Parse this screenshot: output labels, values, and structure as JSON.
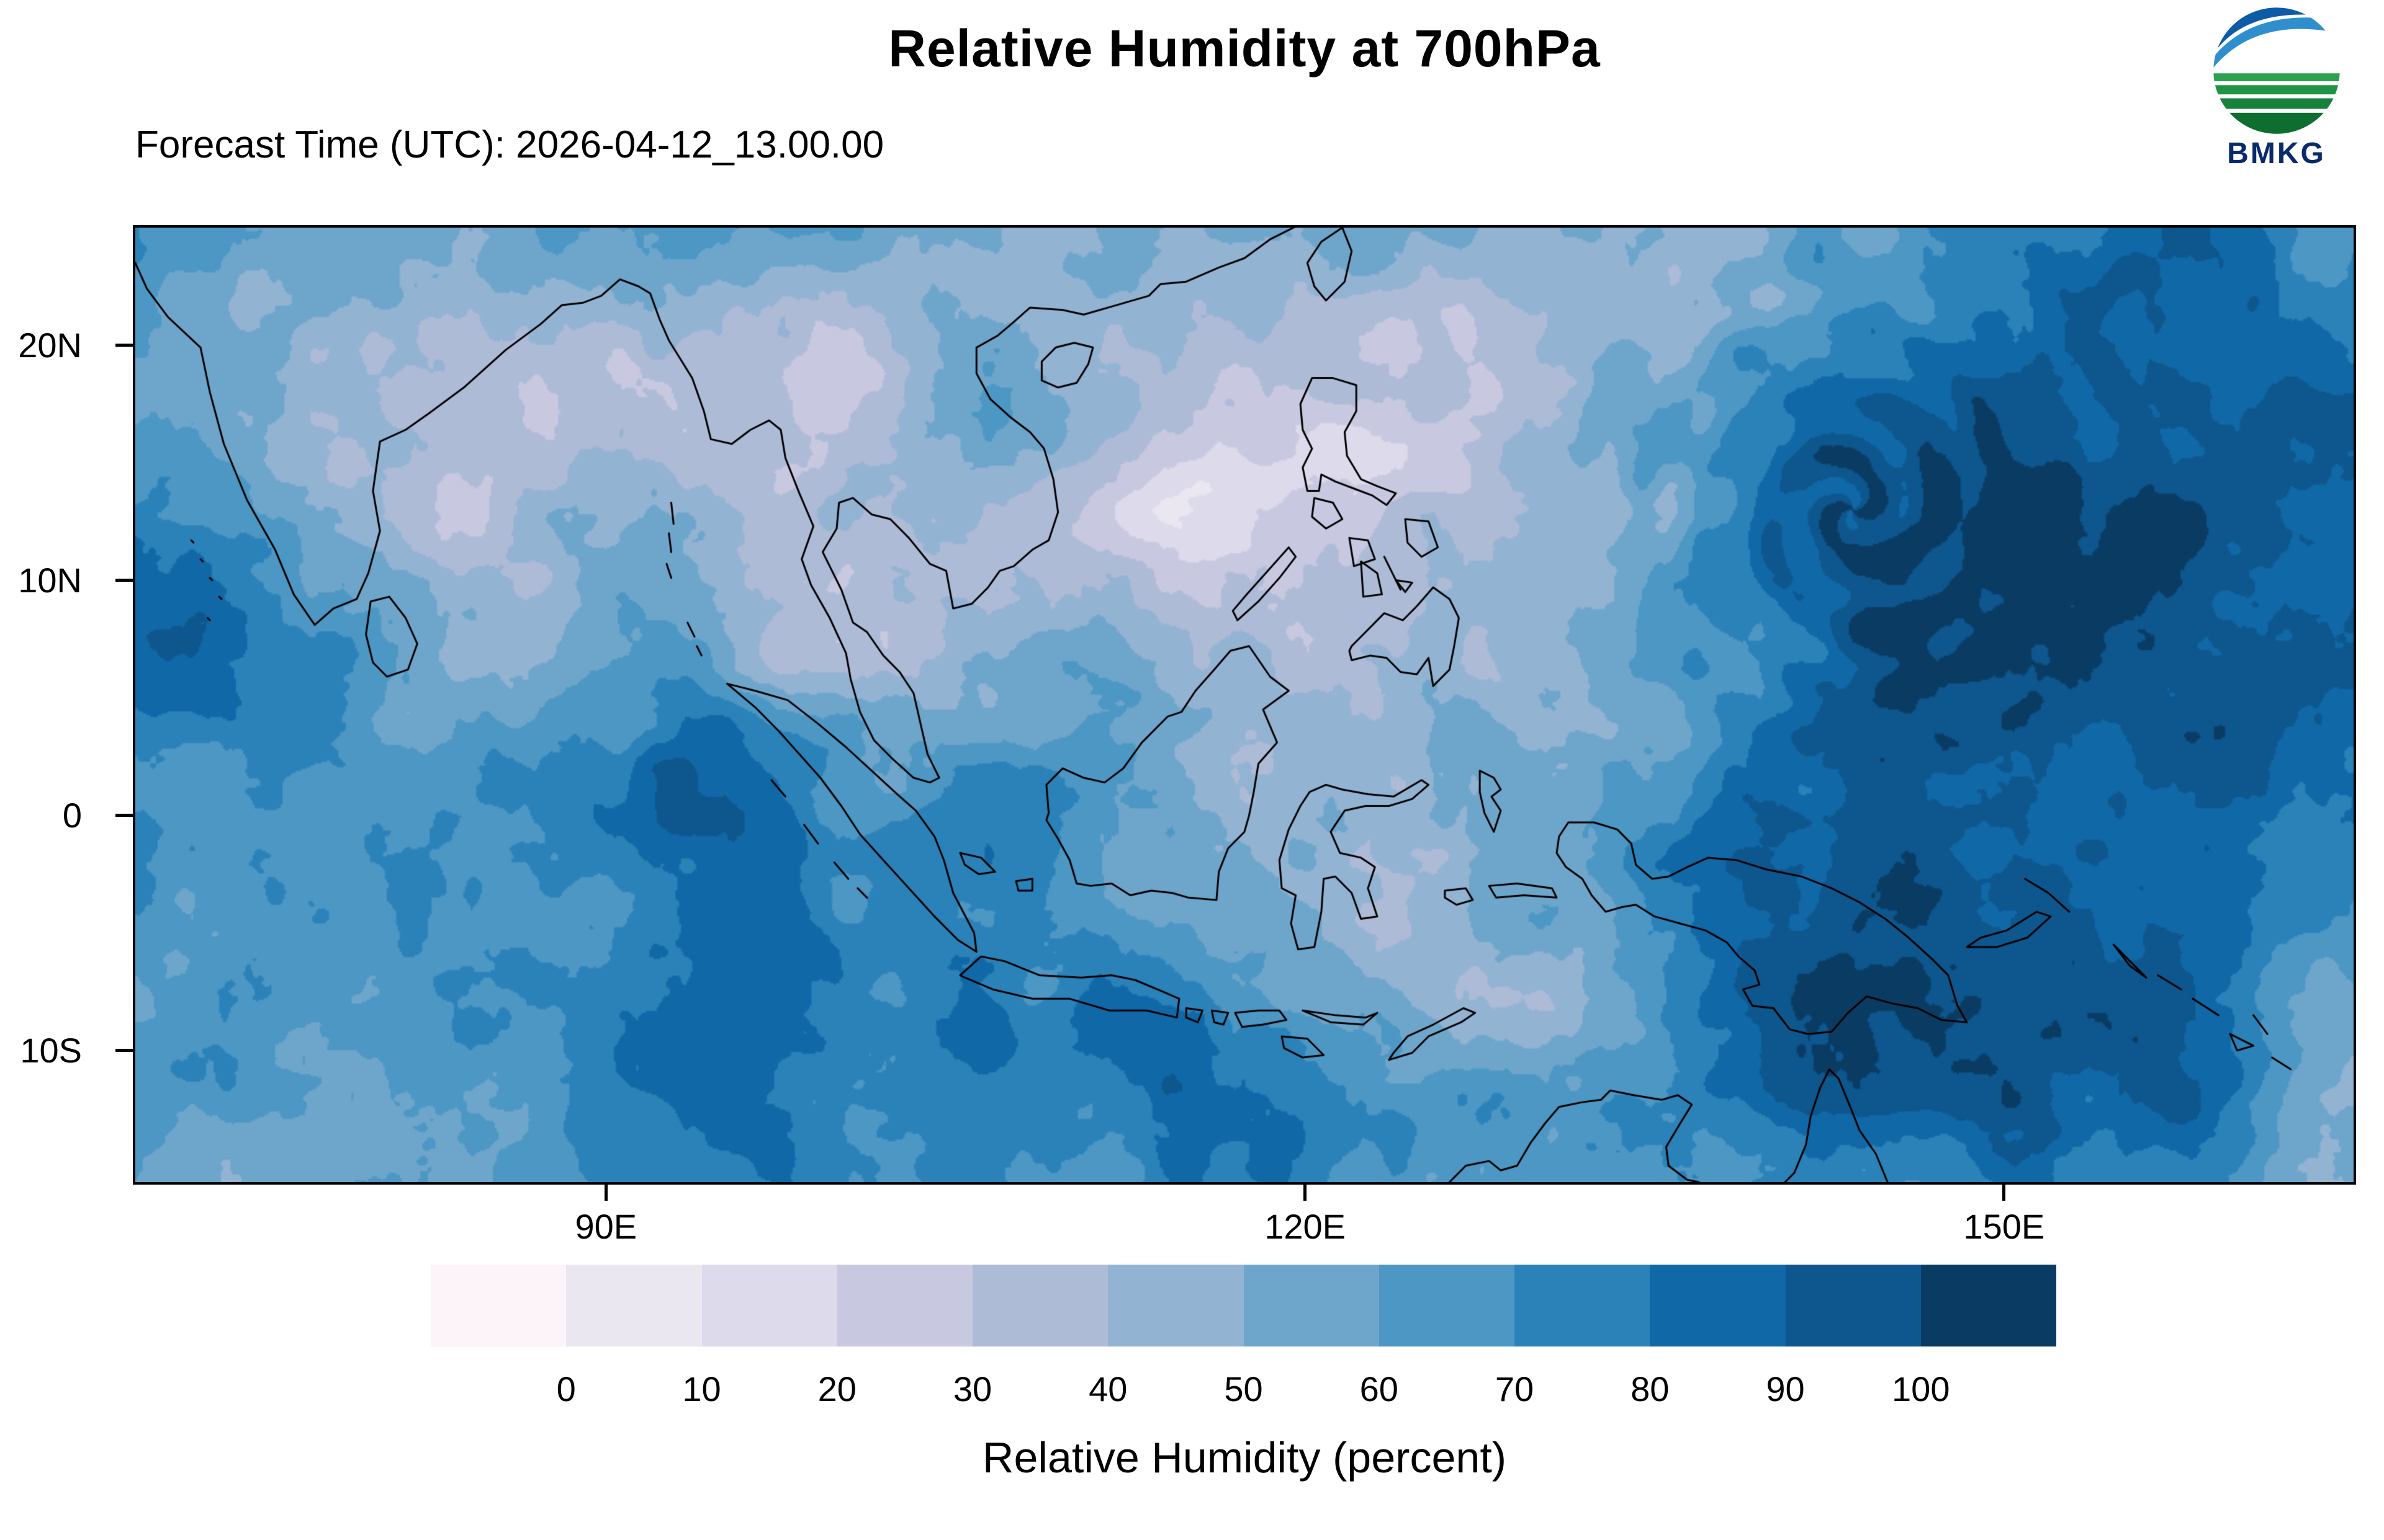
{
  "header": {
    "title": "Relative Humidity at 700hPa",
    "forecast_label": "Forecast Time (UTC): 2026-04-12_13.00.00",
    "logo_text": "BMKG",
    "logo_icon": "bmkg-globe-icon"
  },
  "axes": {
    "lat_ticks": [
      {
        "label": "20N",
        "deg": 20
      },
      {
        "label": "10N",
        "deg": 10
      },
      {
        "label": "0",
        "deg": 0
      },
      {
        "label": "10S",
        "deg": -10
      }
    ],
    "lon_ticks": [
      {
        "label": "90E",
        "deg": 90
      },
      {
        "label": "120E",
        "deg": 120
      },
      {
        "label": "150E",
        "deg": 150
      }
    ]
  },
  "colorbar": {
    "caption": "Relative Humidity (percent)",
    "tick_labels": [
      "0",
      "10",
      "20",
      "30",
      "40",
      "50",
      "60",
      "70",
      "80",
      "90",
      "100"
    ]
  },
  "chart_data": {
    "type": "heatmap",
    "title": "Relative Humidity at 700hPa",
    "forecast_time_utc": "2026-04-12_13.00.00",
    "variable": "Relative Humidity",
    "unit": "percent",
    "pressure_level": "700hPa",
    "contour_levels": [
      0,
      10,
      20,
      30,
      40,
      50,
      60,
      70,
      80,
      90,
      100
    ],
    "palette": [
      "#fcf4f9",
      "#eae7f1",
      "#dcdaeb",
      "#c8c9e0",
      "#aebbd7",
      "#93b3d3",
      "#6ea6cb",
      "#4c97c4",
      "#2b82b9",
      "#1068a7",
      "#0d568e",
      "#0a3c63"
    ],
    "x_tick_labels": [
      "90E",
      "120E",
      "150E"
    ],
    "y_tick_labels": [
      "20N",
      "10N",
      "0",
      "10S"
    ],
    "legend_position": "bottom",
    "legend_title": "Relative Humidity (percent)"
  }
}
